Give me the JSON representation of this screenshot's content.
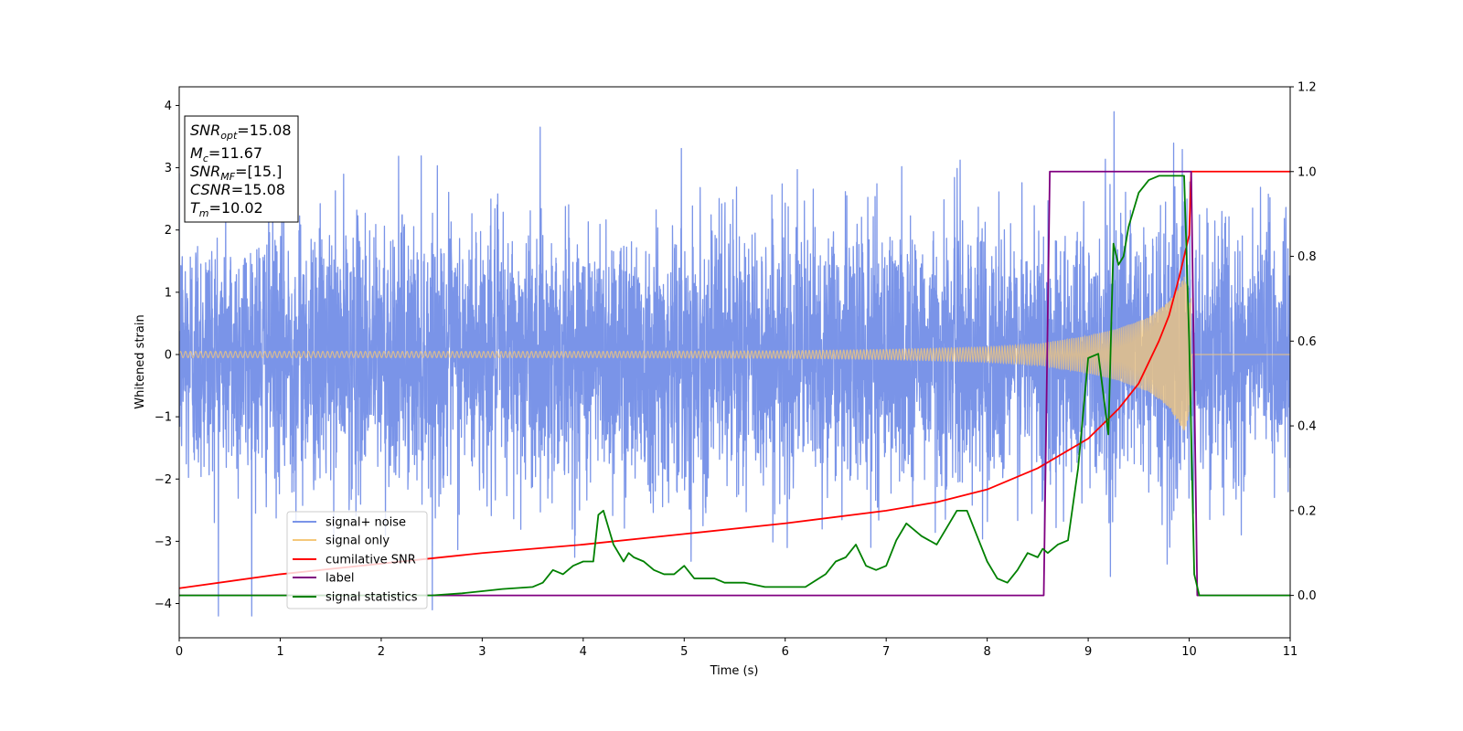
{
  "chart_data": {
    "type": "line",
    "xlabel": "Time (s)",
    "ylabel": "Whitened strain",
    "xlim": [
      0,
      11
    ],
    "ylim_left": [
      -4.55,
      4.3
    ],
    "ylim_right": [
      -0.1,
      1.2
    ],
    "xticks": [
      "0",
      "1",
      "2",
      "3",
      "4",
      "5",
      "6",
      "7",
      "8",
      "9",
      "10",
      "11"
    ],
    "yticks_left": [
      "−4",
      "−3",
      "−2",
      "−1",
      "0",
      "1",
      "2",
      "3",
      "4"
    ],
    "yticks_right": [
      "0.0",
      "0.2",
      "0.4",
      "0.6",
      "0.8",
      "1.0",
      "1.2"
    ],
    "grid": false,
    "legend_position": "lower-left",
    "info_box": {
      "position": "top-left",
      "lines": [
        {
          "var": "SNR",
          "sub": "opt",
          "value": "=15.08"
        },
        {
          "var": "M",
          "sub": "c",
          "value": "=11.67"
        },
        {
          "var": "SNR",
          "sub": "MF",
          "value": "=[15.]"
        },
        {
          "var": "CSNR",
          "sub": "",
          "value": "=15.08"
        },
        {
          "var": "T",
          "sub": "m",
          "value": "=10.02"
        }
      ]
    },
    "series": [
      {
        "name": "signal+ noise",
        "axis": "left",
        "color": "#7a94e8",
        "style": "dense gaussian noise, sigma ~1.0, samples ~2048 Hz, extrema about -4.2 to 3.9",
        "noise_sigma": 1.0,
        "t_start": 0,
        "t_end": 11
      },
      {
        "name": "signal only",
        "axis": "left",
        "color": "#f5c87a",
        "style": "chirp",
        "t_merger": 10.02,
        "amplitude_at_start": 0.05,
        "amplitude_near_merger": 1.3,
        "envelope_t": [
          0,
          2,
          4,
          6,
          7,
          8,
          8.5,
          9,
          9.3,
          9.6,
          9.8,
          9.95,
          10.02,
          10.03
        ],
        "envelope_amp": [
          0.05,
          0.05,
          0.05,
          0.06,
          0.08,
          0.12,
          0.17,
          0.3,
          0.42,
          0.6,
          0.85,
          1.25,
          0.9,
          0.0
        ]
      },
      {
        "name": "cumilative SNR",
        "axis": "right",
        "color": "#ff0000",
        "x": [
          0,
          1,
          2,
          3,
          4,
          5,
          6,
          7,
          7.5,
          8,
          8.5,
          9,
          9.3,
          9.5,
          9.7,
          9.8,
          9.9,
          9.95,
          10.0,
          10.01,
          10.02,
          11
        ],
        "y": [
          0.017,
          0.05,
          0.075,
          0.1,
          0.12,
          0.145,
          0.17,
          0.2,
          0.22,
          0.25,
          0.3,
          0.37,
          0.44,
          0.5,
          0.6,
          0.66,
          0.75,
          0.8,
          0.85,
          0.93,
          1.0,
          1.0
        ]
      },
      {
        "name": "label",
        "axis": "right",
        "color": "#800080",
        "x": [
          0,
          8.56,
          8.62,
          10.02,
          10.08,
          11
        ],
        "y": [
          0.0,
          0.0,
          1.0,
          1.0,
          0.0,
          0.0
        ]
      },
      {
        "name": "signal statistics",
        "axis": "right",
        "color": "#008000",
        "x": [
          0,
          1,
          2,
          2.5,
          2.8,
          3.0,
          3.2,
          3.5,
          3.6,
          3.7,
          3.8,
          3.9,
          4.0,
          4.1,
          4.15,
          4.2,
          4.3,
          4.4,
          4.45,
          4.5,
          4.6,
          4.7,
          4.8,
          4.9,
          5.0,
          5.1,
          5.3,
          5.4,
          5.5,
          5.6,
          5.8,
          6.0,
          6.2,
          6.4,
          6.5,
          6.6,
          6.7,
          6.8,
          6.9,
          7.0,
          7.1,
          7.2,
          7.25,
          7.35,
          7.5,
          7.6,
          7.7,
          7.8,
          7.9,
          8.0,
          8.1,
          8.2,
          8.3,
          8.4,
          8.5,
          8.55,
          8.6,
          8.7,
          8.8,
          8.9,
          9.0,
          9.1,
          9.2,
          9.25,
          9.3,
          9.35,
          9.4,
          9.5,
          9.6,
          9.7,
          9.8,
          9.9,
          9.95,
          10.0,
          10.05,
          10.1,
          10.3,
          11
        ],
        "y": [
          0.0,
          0.0,
          0.0,
          0.0,
          0.005,
          0.01,
          0.015,
          0.02,
          0.03,
          0.06,
          0.05,
          0.07,
          0.08,
          0.08,
          0.19,
          0.2,
          0.12,
          0.08,
          0.1,
          0.09,
          0.08,
          0.06,
          0.05,
          0.05,
          0.07,
          0.04,
          0.04,
          0.03,
          0.03,
          0.03,
          0.02,
          0.02,
          0.02,
          0.05,
          0.08,
          0.09,
          0.12,
          0.07,
          0.06,
          0.07,
          0.13,
          0.17,
          0.16,
          0.14,
          0.12,
          0.16,
          0.2,
          0.2,
          0.14,
          0.08,
          0.04,
          0.03,
          0.06,
          0.1,
          0.09,
          0.11,
          0.1,
          0.12,
          0.13,
          0.3,
          0.56,
          0.57,
          0.38,
          0.83,
          0.78,
          0.8,
          0.87,
          0.95,
          0.98,
          0.99,
          0.99,
          0.99,
          0.99,
          0.6,
          0.05,
          0.0,
          0.0,
          0.0
        ]
      }
    ]
  }
}
